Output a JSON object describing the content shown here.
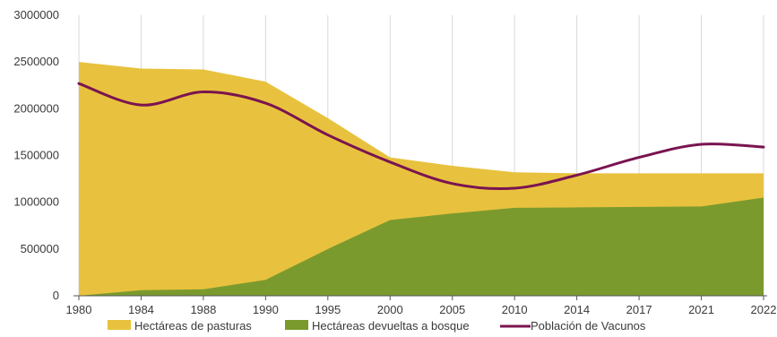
{
  "chart_data": {
    "type": "area",
    "x": [
      "1980",
      "1984",
      "1988",
      "1990",
      "1995",
      "2000",
      "2005",
      "2010",
      "2014",
      "2017",
      "2021",
      "2022"
    ],
    "ylim": [
      0,
      3000000
    ],
    "yticks": [
      "0",
      "500000",
      "1000000",
      "1500000",
      "2000000",
      "2500000",
      "3000000"
    ],
    "grid": "vertical",
    "legend_position": "bottom",
    "series": [
      {
        "name": "Hectáreas de pasturas",
        "kind": "area-total",
        "color": "#E8C23E",
        "values": [
          2500000,
          2430000,
          2420000,
          2290000,
          1900000,
          1480000,
          1390000,
          1320000,
          1310000,
          1310000,
          1310000,
          1310000
        ]
      },
      {
        "name": "Hectáreas devueltas a bosque",
        "kind": "area",
        "color": "#7B9A2E",
        "values": [
          0,
          60000,
          70000,
          170000,
          500000,
          810000,
          880000,
          940000,
          945000,
          950000,
          955000,
          1050000
        ]
      },
      {
        "name": "Población de Vacunos",
        "kind": "line",
        "color": "#7A1450",
        "values": [
          2270000,
          2040000,
          2180000,
          2060000,
          1720000,
          1430000,
          1200000,
          1150000,
          1290000,
          1480000,
          1620000,
          1590000
        ]
      }
    ]
  }
}
